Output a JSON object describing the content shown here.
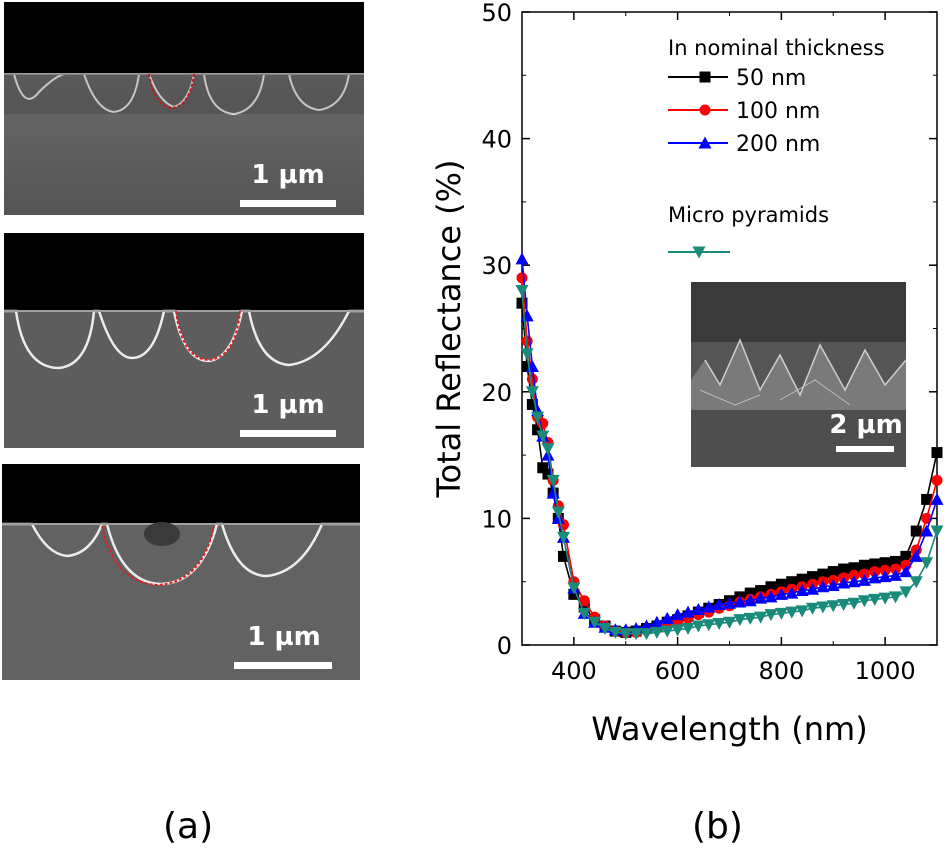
{
  "panels": {
    "a_label": "(a)",
    "b_label": "(b)",
    "sem_images": [
      {
        "name": "sem-50nm",
        "scale_label": "1 µm"
      },
      {
        "name": "sem-100nm",
        "scale_label": "1 µm"
      },
      {
        "name": "sem-200nm",
        "scale_label": "1 µm"
      }
    ],
    "inset": {
      "name": "micro-pyramids-inset",
      "scale_label": "2 µm"
    }
  },
  "chart_data": {
    "type": "line",
    "title": "",
    "xlabel": "Wavelength (nm)",
    "ylabel": "Total Reflectance (%)",
    "xlim": [
      300,
      1100
    ],
    "ylim": [
      0,
      50
    ],
    "xticks": [
      400,
      600,
      800,
      1000
    ],
    "yticks": [
      0,
      10,
      20,
      30,
      40,
      50
    ],
    "grid": false,
    "legend": {
      "title": "In nominal thickness",
      "group2_title": "Micro pyramids",
      "placement": "top-right"
    },
    "series": [
      {
        "name": "50 nm",
        "legend_label": "  50 nm",
        "color": "#000000",
        "marker": "square",
        "x": [
          300,
          310,
          320,
          330,
          340,
          350,
          360,
          370,
          380,
          400,
          420,
          440,
          460,
          480,
          500,
          520,
          540,
          560,
          580,
          600,
          620,
          640,
          660,
          680,
          700,
          720,
          740,
          760,
          780,
          800,
          820,
          840,
          860,
          880,
          900,
          920,
          940,
          960,
          980,
          1000,
          1020,
          1040,
          1060,
          1080,
          1100
        ],
        "y": [
          27,
          22,
          19,
          17,
          14,
          13.5,
          12,
          10,
          7,
          4,
          3,
          2,
          1.5,
          1.1,
          1.0,
          1.1,
          1.3,
          1.5,
          1.8,
          2.0,
          2.3,
          2.6,
          2.9,
          3.2,
          3.5,
          3.8,
          4.1,
          4.3,
          4.6,
          4.8,
          5.0,
          5.2,
          5.4,
          5.6,
          5.8,
          6.0,
          6.1,
          6.3,
          6.4,
          6.5,
          6.6,
          7.0,
          9.0,
          11.5,
          15.2
        ]
      },
      {
        "name": "100 nm",
        "legend_label": "100 nm",
        "color": "#ff0000",
        "marker": "circle",
        "x": [
          300,
          310,
          320,
          330,
          340,
          350,
          360,
          370,
          380,
          400,
          420,
          440,
          460,
          480,
          500,
          520,
          540,
          560,
          580,
          600,
          620,
          640,
          660,
          680,
          700,
          720,
          740,
          760,
          780,
          800,
          820,
          840,
          860,
          880,
          900,
          920,
          940,
          960,
          980,
          1000,
          1020,
          1040,
          1060,
          1080,
          1100
        ],
        "y": [
          29,
          24,
          21,
          18,
          17.5,
          16,
          13,
          11,
          9.5,
          5,
          3.5,
          2.2,
          1.5,
          1.1,
          1.0,
          1.0,
          1.2,
          1.4,
          1.6,
          1.8,
          2.1,
          2.4,
          2.6,
          2.9,
          3.1,
          3.4,
          3.6,
          3.8,
          4.0,
          4.2,
          4.4,
          4.6,
          4.8,
          5.0,
          5.1,
          5.3,
          5.5,
          5.6,
          5.8,
          5.9,
          6.0,
          6.3,
          7.5,
          10.0,
          13.0
        ]
      },
      {
        "name": "200 nm",
        "legend_label": "200 nm",
        "color": "#0000ff",
        "marker": "triangle-up",
        "x": [
          300,
          310,
          320,
          330,
          340,
          350,
          360,
          370,
          380,
          400,
          420,
          440,
          460,
          480,
          500,
          520,
          540,
          560,
          580,
          600,
          620,
          640,
          660,
          680,
          700,
          720,
          740,
          760,
          780,
          800,
          820,
          840,
          860,
          880,
          900,
          920,
          940,
          960,
          980,
          1000,
          1020,
          1040,
          1060,
          1080,
          1100
        ],
        "y": [
          30.5,
          26,
          22,
          18.5,
          16.5,
          15,
          12,
          10,
          8.5,
          4.5,
          2.5,
          1.8,
          1.4,
          1.2,
          1.2,
          1.3,
          1.5,
          1.8,
          2.1,
          2.4,
          2.6,
          2.8,
          3.0,
          3.2,
          3.3,
          3.4,
          3.5,
          3.7,
          3.8,
          4.0,
          4.1,
          4.3,
          4.4,
          4.6,
          4.7,
          4.9,
          5.0,
          5.1,
          5.3,
          5.4,
          5.5,
          5.8,
          7.0,
          9.0,
          11.5
        ]
      },
      {
        "name": "Micro pyramids",
        "legend_label": "",
        "color": "#1a8a7a",
        "marker": "triangle-down",
        "x": [
          300,
          310,
          320,
          330,
          340,
          350,
          360,
          370,
          380,
          400,
          420,
          440,
          460,
          480,
          500,
          520,
          540,
          560,
          580,
          600,
          620,
          640,
          660,
          680,
          700,
          720,
          740,
          760,
          780,
          800,
          820,
          840,
          860,
          880,
          900,
          920,
          940,
          960,
          980,
          1000,
          1020,
          1040,
          1060,
          1080,
          1100
        ],
        "y": [
          28,
          23,
          20,
          18,
          16.5,
          15.5,
          13,
          10.5,
          8.5,
          4.5,
          2.5,
          1.8,
          1.3,
          1.0,
          0.9,
          0.9,
          0.9,
          1.0,
          1.1,
          1.2,
          1.3,
          1.5,
          1.6,
          1.7,
          1.8,
          2.0,
          2.1,
          2.2,
          2.4,
          2.5,
          2.6,
          2.7,
          2.9,
          3.0,
          3.1,
          3.2,
          3.3,
          3.5,
          3.6,
          3.7,
          3.8,
          4.2,
          5.0,
          6.5,
          9.0
        ]
      }
    ]
  }
}
